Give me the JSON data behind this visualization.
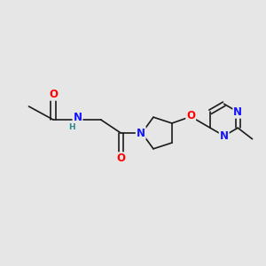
{
  "bg_color": "#e6e6e6",
  "bond_color": "#1a1a1a",
  "atom_colors": {
    "N": "#1414ff",
    "O": "#ff0000",
    "H": "#2e8b8b",
    "C": "#1a1a1a"
  },
  "font_size_atom": 8.5,
  "lw": 1.2
}
